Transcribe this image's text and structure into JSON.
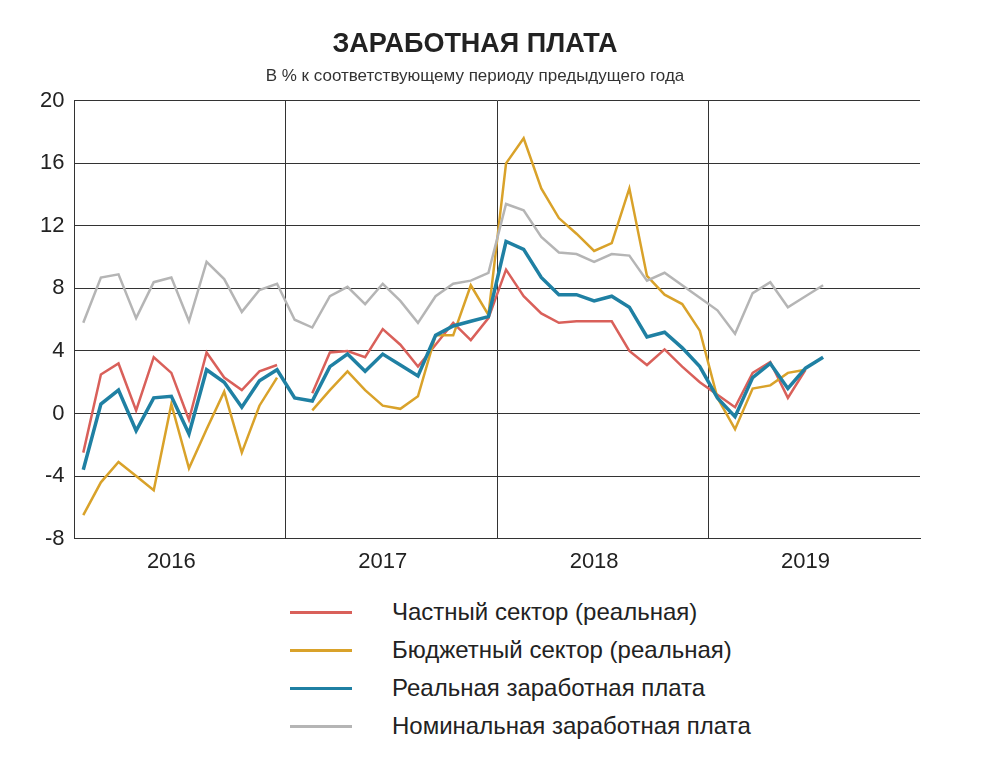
{
  "chart_data": {
    "type": "line",
    "title": "ЗАРАБОТНАЯ ПЛАТА",
    "subtitle": "В % к соответствующему периоду предыдущего года",
    "categories": [
      null,
      null,
      null,
      null,
      null,
      "2016",
      null,
      null,
      null,
      null,
      null,
      null,
      null,
      null,
      null,
      null,
      null,
      "2017",
      null,
      null,
      null,
      null,
      null,
      null,
      null,
      null,
      null,
      null,
      null,
      "2018",
      null,
      null,
      null,
      null,
      null,
      null,
      null,
      null,
      null,
      null,
      null,
      "2019",
      null,
      null,
      null,
      null,
      null,
      null
    ],
    "series": [
      {
        "name": "Частный сектор (реальная)",
        "color": "#d9605a",
        "values": [
          -2.5,
          2.5,
          3.2,
          0.2,
          3.6,
          2.6,
          -0.4,
          3.9,
          2.3,
          1.5,
          2.7,
          3.1,
          null,
          1.3,
          3.9,
          4.0,
          3.6,
          5.4,
          4.4,
          3.0,
          4.4,
          5.8,
          4.7,
          6.1,
          9.2,
          7.5,
          6.4,
          5.8,
          5.9,
          5.9,
          5.9,
          4.0,
          3.1,
          4.1,
          3.0,
          2.0,
          1.2,
          0.4,
          2.6,
          3.3,
          1.0,
          2.8,
          null,
          null,
          null,
          null,
          null,
          null
        ]
      },
      {
        "name": "Бюджетный сектор (реальная)",
        "color": "#d9a22a",
        "values": [
          -6.5,
          -4.4,
          -3.1,
          -4.0,
          -4.9,
          0.6,
          -3.5,
          -1.0,
          1.4,
          -2.5,
          0.5,
          2.3,
          null,
          0.2,
          1.5,
          2.7,
          1.5,
          0.5,
          0.3,
          1.1,
          5.0,
          5.0,
          8.2,
          6.3,
          16.0,
          17.6,
          14.4,
          12.5,
          11.5,
          10.4,
          10.9,
          14.4,
          8.8,
          7.6,
          7.0,
          5.3,
          1.0,
          -1.0,
          1.6,
          1.8,
          2.6,
          2.8,
          null,
          null,
          null,
          null,
          null,
          null
        ]
      },
      {
        "name": "Реальная заработная плата",
        "color": "#1f80a3",
        "values": [
          -3.6,
          0.6,
          1.5,
          -1.1,
          1.0,
          1.1,
          -1.3,
          2.8,
          2.0,
          0.4,
          2.1,
          2.8,
          1.0,
          0.8,
          3.0,
          3.8,
          2.7,
          3.8,
          3.1,
          2.4,
          5.0,
          5.6,
          5.9,
          6.2,
          11.0,
          10.5,
          8.7,
          7.6,
          7.6,
          7.2,
          7.5,
          6.8,
          4.9,
          5.2,
          4.2,
          3.0,
          1.0,
          -0.2,
          2.3,
          3.2,
          1.6,
          2.9,
          3.6,
          null,
          null,
          null,
          null,
          null
        ]
      },
      {
        "name": "Номинальная заработная плата",
        "color": "#b5b5b5",
        "values": [
          5.8,
          8.7,
          8.9,
          6.1,
          8.4,
          8.7,
          5.9,
          9.7,
          8.6,
          6.5,
          7.9,
          8.3,
          6.0,
          5.5,
          7.5,
          8.1,
          7.0,
          8.3,
          7.2,
          5.8,
          7.5,
          8.3,
          8.5,
          9.0,
          13.4,
          13.0,
          11.3,
          10.3,
          10.2,
          9.7,
          10.2,
          10.1,
          8.5,
          9.0,
          8.2,
          7.4,
          6.6,
          5.1,
          7.7,
          8.4,
          6.8,
          7.5,
          8.2,
          null,
          null,
          null,
          null,
          null
        ]
      }
    ],
    "ylim": [
      -8,
      20
    ],
    "yticks": [
      -8,
      -4,
      0,
      4,
      8,
      12,
      16,
      20
    ],
    "grid": true,
    "legend": "bottom"
  }
}
